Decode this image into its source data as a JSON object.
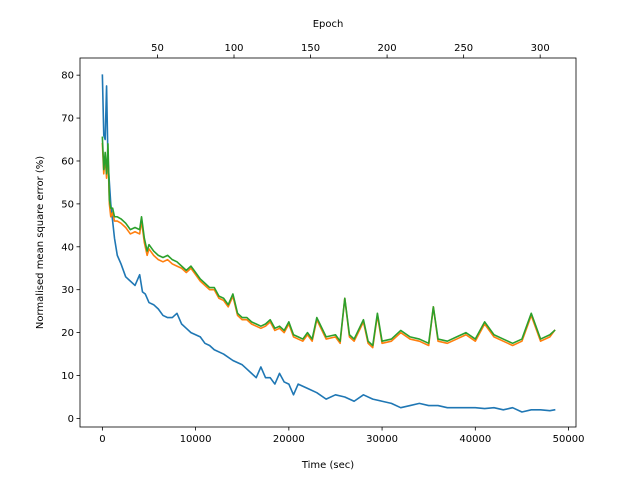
{
  "chart_data": {
    "type": "line",
    "title": "",
    "xlabel": "Time (sec)",
    "ylabel": "Normalised mean square error (%)",
    "x2label": "Epoch",
    "xlim": [
      -2400,
      50800
    ],
    "ylim": [
      -2,
      84
    ],
    "x2lim": [
      -0.6,
      323.4
    ],
    "xticks": [
      0,
      10000,
      20000,
      30000,
      40000,
      50000
    ],
    "xtick_labels": [
      "0",
      "10000",
      "20000",
      "30000",
      "40000",
      "50000"
    ],
    "yticks": [
      0,
      10,
      20,
      30,
      40,
      50,
      60,
      70,
      80
    ],
    "ytick_labels": [
      "0",
      "10",
      "20",
      "30",
      "40",
      "50",
      "60",
      "70",
      "80"
    ],
    "x2ticks": [
      50,
      100,
      150,
      200,
      250,
      300
    ],
    "x2tick_labels": [
      "50",
      "100",
      "150",
      "200",
      "250",
      "300"
    ],
    "grid": false,
    "legend": "none",
    "series": [
      {
        "color": "#1f77b4",
        "x": [
          0,
          150,
          300,
          450,
          600,
          750,
          900,
          1100,
          1300,
          1600,
          2000,
          2500,
          3000,
          3500,
          4000,
          4300,
          4600,
          5000,
          5500,
          6000,
          6500,
          7000,
          7500,
          8000,
          8500,
          9000,
          9500,
          10000,
          10500,
          11000,
          11500,
          12000,
          13000,
          14000,
          14500,
          15000,
          15500,
          16000,
          16500,
          17000,
          17500,
          18000,
          18500,
          19000,
          19500,
          20000,
          20500,
          21000,
          22000,
          23000,
          24000,
          25000,
          26000,
          27000,
          28000,
          29000,
          30000,
          31000,
          32000,
          33000,
          34000,
          35000,
          36000,
          37000,
          38000,
          39000,
          40000,
          41000,
          42000,
          43000,
          44000,
          45000,
          46000,
          47000,
          48000,
          48500
        ],
        "values": [
          80,
          66,
          65,
          77.5,
          60,
          55,
          50,
          46,
          42,
          38,
          36,
          33,
          32,
          31,
          33.5,
          29.5,
          29,
          27,
          26.5,
          25.5,
          24,
          23.5,
          23.5,
          24.5,
          22,
          21,
          20,
          19.5,
          19,
          17.5,
          17,
          16,
          15,
          13.5,
          13,
          12.5,
          11.5,
          10.5,
          9.5,
          12,
          9.5,
          9.5,
          8,
          10.5,
          8.5,
          8,
          5.5,
          8,
          7,
          6,
          4.5,
          5.5,
          5,
          4,
          5.5,
          4.5,
          4,
          3.5,
          2.5,
          3,
          3.5,
          3,
          3,
          2.5,
          2.5,
          2.5,
          2.5,
          2.3,
          2.5,
          2,
          2.5,
          1.5,
          2,
          2,
          1.8,
          2
        ]
      },
      {
        "color": "#ff7f0e",
        "x": [
          0,
          150,
          300,
          450,
          600,
          750,
          900,
          1100,
          1300,
          1600,
          2000,
          2500,
          3000,
          3500,
          4000,
          4200,
          4500,
          4800,
          5000,
          5500,
          6000,
          6500,
          7000,
          7500,
          8000,
          8500,
          9000,
          9500,
          10000,
          10500,
          11000,
          11500,
          12000,
          12500,
          13000,
          13500,
          14000,
          14500,
          15000,
          15500,
          16000,
          16500,
          17000,
          17500,
          18000,
          18500,
          19000,
          19500,
          20000,
          20500,
          21000,
          21500,
          22000,
          22500,
          23000,
          24000,
          25000,
          25500,
          26000,
          26500,
          27000,
          28000,
          28500,
          29000,
          29500,
          30000,
          31000,
          32000,
          33000,
          34000,
          35000,
          35500,
          36000,
          37000,
          38000,
          39000,
          40000,
          41000,
          42000,
          43000,
          43500,
          44000,
          45000,
          46000,
          47000,
          48000,
          48500
        ],
        "values": [
          64,
          57,
          61,
          56,
          62,
          50,
          47,
          48,
          46,
          46,
          45.5,
          44.5,
          43,
          43.5,
          43,
          46,
          41,
          38,
          39.5,
          38,
          37,
          36.5,
          37,
          36,
          35.5,
          35,
          34,
          35,
          33.5,
          32,
          31,
          30,
          30,
          28,
          27.5,
          26,
          28.5,
          24,
          23,
          23,
          22,
          21.5,
          21,
          21.5,
          22.5,
          20.5,
          21,
          20,
          22,
          19,
          18.5,
          18,
          19.5,
          18,
          23,
          18.5,
          19,
          17.5,
          28,
          19,
          18,
          22.5,
          17.5,
          16.5,
          24,
          17.5,
          18,
          20,
          18.5,
          18,
          17,
          26,
          18,
          17.5,
          18.5,
          19.5,
          18,
          22,
          19,
          18,
          17.5,
          17,
          18,
          24,
          18,
          19,
          20.5
        ]
      },
      {
        "color": "#2ca02c",
        "x": [
          0,
          150,
          300,
          450,
          600,
          750,
          900,
          1100,
          1300,
          1600,
          2000,
          2500,
          3000,
          3500,
          4000,
          4200,
          4500,
          4800,
          5000,
          5500,
          6000,
          6500,
          7000,
          7500,
          8000,
          8500,
          9000,
          9500,
          10000,
          10500,
          11000,
          11500,
          12000,
          12500,
          13000,
          13500,
          14000,
          14500,
          15000,
          15500,
          16000,
          16500,
          17000,
          17500,
          18000,
          18500,
          19000,
          19500,
          20000,
          20500,
          21000,
          21500,
          22000,
          22500,
          23000,
          24000,
          25000,
          25500,
          26000,
          26500,
          27000,
          28000,
          28500,
          29000,
          29500,
          30000,
          31000,
          32000,
          33000,
          34000,
          35000,
          35500,
          36000,
          37000,
          38000,
          39000,
          40000,
          41000,
          42000,
          43000,
          43500,
          44000,
          45000,
          46000,
          47000,
          48000,
          48500
        ],
        "values": [
          65.5,
          58,
          62,
          57,
          64,
          51,
          49,
          49,
          47,
          47,
          46.5,
          45.5,
          44,
          44.5,
          44,
          47,
          42,
          39,
          40.5,
          39,
          38,
          37.5,
          38,
          37,
          36.5,
          35.5,
          34.5,
          35.5,
          34,
          32.5,
          31.5,
          30.5,
          30.5,
          28.5,
          28,
          26.5,
          29,
          24.5,
          23.5,
          23.5,
          22.5,
          22,
          21.5,
          22,
          23,
          21,
          21.5,
          20.5,
          22.5,
          19.5,
          19,
          18.5,
          20,
          18.5,
          23.5,
          19,
          19.5,
          18,
          28,
          19.5,
          18.5,
          23,
          18,
          17,
          24.5,
          18,
          18.5,
          20.5,
          19,
          18.5,
          17.5,
          26,
          18.5,
          18,
          19,
          20,
          18.5,
          22.5,
          19.5,
          18.5,
          18,
          17.5,
          18.5,
          24.5,
          18.5,
          19.5,
          20.5
        ]
      }
    ]
  }
}
